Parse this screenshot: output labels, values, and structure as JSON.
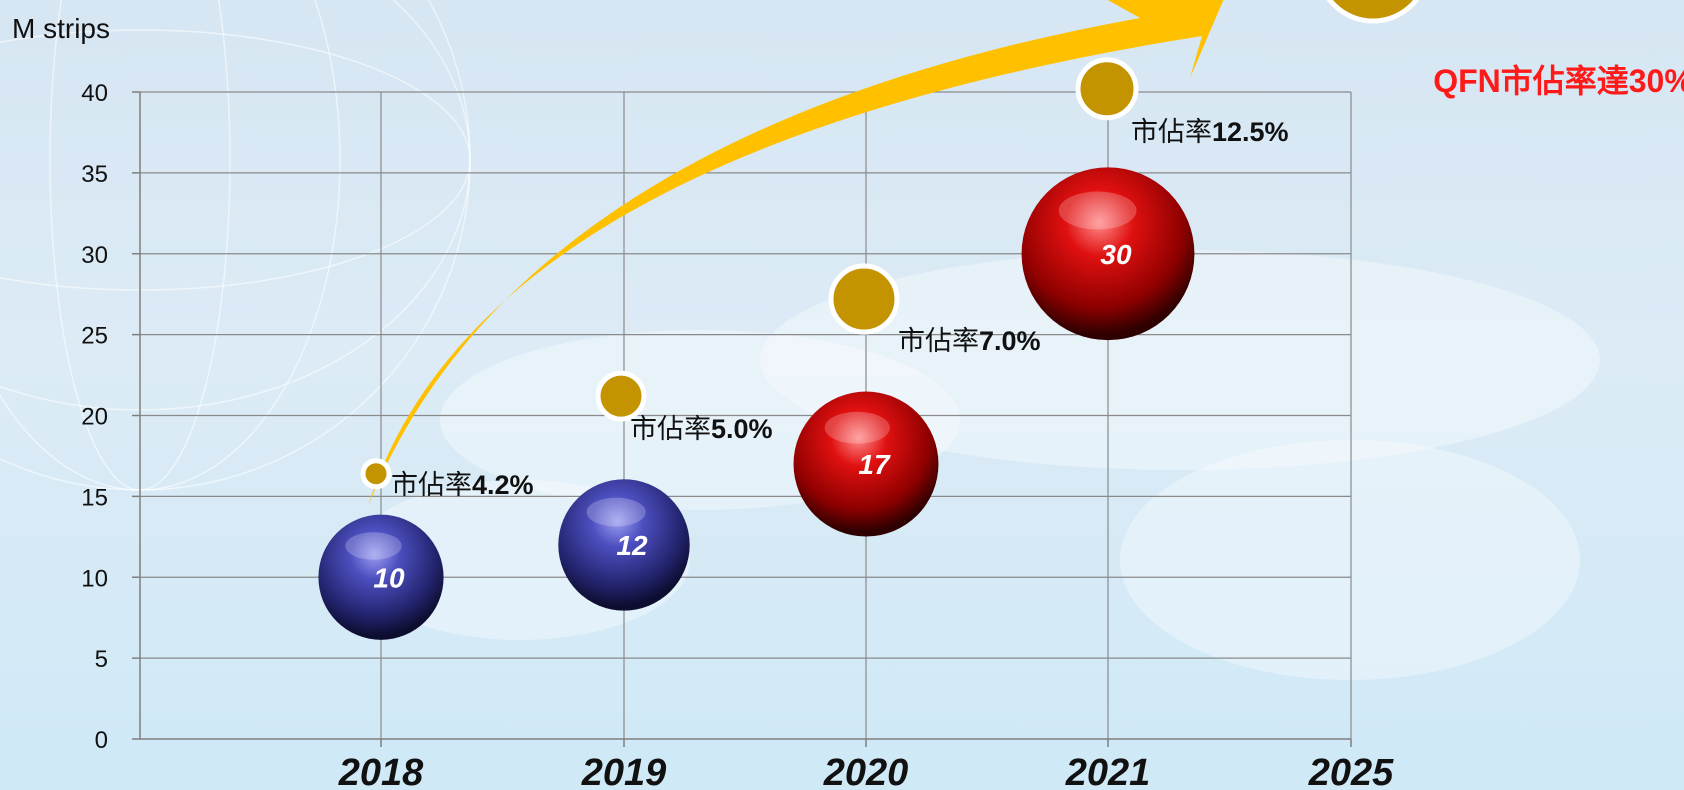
{
  "chart_data": {
    "type": "bubble",
    "ylabel": "M strips",
    "ylim": [
      0,
      40
    ],
    "yticks": [
      0,
      5,
      10,
      15,
      20,
      25,
      30,
      35,
      40
    ],
    "categories": [
      "2018",
      "2019",
      "2020",
      "2021",
      "2025"
    ],
    "grid": true,
    "bubbles": [
      {
        "year": "2018",
        "value": 10,
        "label": "10",
        "color": "blue"
      },
      {
        "year": "2019",
        "value": 12,
        "label": "12",
        "color": "blue"
      },
      {
        "year": "2020",
        "value": 17,
        "label": "17",
        "color": "red"
      },
      {
        "year": "2021",
        "value": 30,
        "label": "30",
        "color": "red"
      }
    ],
    "share_markers": [
      {
        "year": "2018",
        "value": 16.4,
        "prefix": "市佔率",
        "pct": "4.2%"
      },
      {
        "year": "2019",
        "value": 21.2,
        "prefix": "市佔率",
        "pct": "5.0%"
      },
      {
        "year": "2020",
        "value": 27.2,
        "prefix": "市佔率",
        "pct": "7.0%"
      },
      {
        "year": "2021",
        "value": 40.2,
        "prefix": "市佔率",
        "pct": "12.5%"
      },
      {
        "year": "2025",
        "value": null,
        "prefix": "",
        "pct": ""
      }
    ],
    "annotation": {
      "p1": "QFN",
      "p2": "市佔率達",
      "p3": "30%",
      "color": "#ff1a1a"
    },
    "colors": {
      "arrow": "#ffc000",
      "gold": "#c49400",
      "blue": "#2e2f8f",
      "red": "#d40000",
      "axis": "#7f7f7f",
      "grid": "#8a8a8a"
    }
  }
}
